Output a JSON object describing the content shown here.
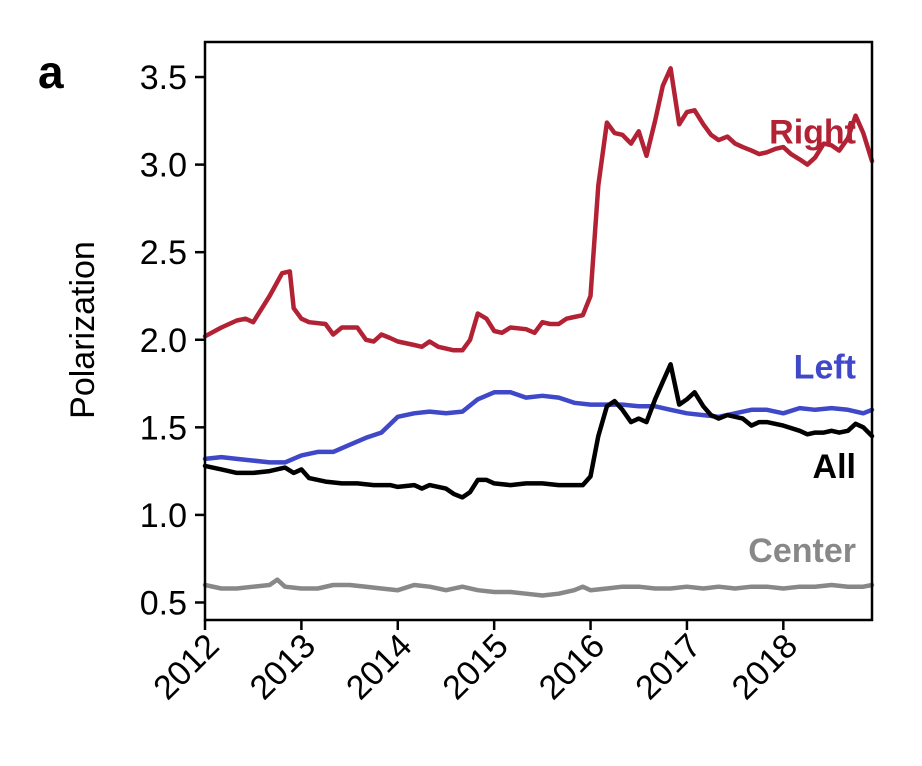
{
  "panel_label": "a",
  "chart_data": {
    "type": "line",
    "title": "",
    "xlabel": "",
    "ylabel": "Polarization",
    "xlim": [
      2012.0,
      2018.92
    ],
    "ylim": [
      0.4,
      3.7
    ],
    "yticks": [
      "0.5",
      "1.0",
      "1.5",
      "2.0",
      "2.5",
      "3.0",
      "3.5"
    ],
    "xticks": [
      "2012",
      "2013",
      "2014",
      "2015",
      "2016",
      "2017",
      "2018"
    ],
    "grid": false,
    "legend": "inline labels at right of each line",
    "series": [
      {
        "name": "Right",
        "color": "#b22234",
        "points": [
          [
            2012.0,
            2.02
          ],
          [
            2012.17,
            2.07
          ],
          [
            2012.33,
            2.11
          ],
          [
            2012.42,
            2.12
          ],
          [
            2012.5,
            2.1
          ],
          [
            2012.67,
            2.25
          ],
          [
            2012.75,
            2.33
          ],
          [
            2012.8,
            2.38
          ],
          [
            2012.88,
            2.39
          ],
          [
            2012.92,
            2.18
          ],
          [
            2013.0,
            2.12
          ],
          [
            2013.08,
            2.1
          ],
          [
            2013.25,
            2.09
          ],
          [
            2013.33,
            2.03
          ],
          [
            2013.42,
            2.07
          ],
          [
            2013.58,
            2.07
          ],
          [
            2013.67,
            2.0
          ],
          [
            2013.75,
            1.99
          ],
          [
            2013.83,
            2.03
          ],
          [
            2013.92,
            2.01
          ],
          [
            2014.0,
            1.99
          ],
          [
            2014.17,
            1.97
          ],
          [
            2014.25,
            1.96
          ],
          [
            2014.33,
            1.99
          ],
          [
            2014.42,
            1.96
          ],
          [
            2014.58,
            1.94
          ],
          [
            2014.67,
            1.94
          ],
          [
            2014.75,
            2.0
          ],
          [
            2014.83,
            2.15
          ],
          [
            2014.92,
            2.12
          ],
          [
            2015.0,
            2.05
          ],
          [
            2015.08,
            2.04
          ],
          [
            2015.17,
            2.07
          ],
          [
            2015.33,
            2.06
          ],
          [
            2015.42,
            2.04
          ],
          [
            2015.5,
            2.1
          ],
          [
            2015.58,
            2.09
          ],
          [
            2015.67,
            2.09
          ],
          [
            2015.75,
            2.12
          ],
          [
            2015.83,
            2.13
          ],
          [
            2015.92,
            2.14
          ],
          [
            2016.0,
            2.25
          ],
          [
            2016.08,
            2.88
          ],
          [
            2016.17,
            3.24
          ],
          [
            2016.25,
            3.18
          ],
          [
            2016.33,
            3.17
          ],
          [
            2016.42,
            3.12
          ],
          [
            2016.5,
            3.19
          ],
          [
            2016.58,
            3.05
          ],
          [
            2016.67,
            3.25
          ],
          [
            2016.75,
            3.45
          ],
          [
            2016.83,
            3.55
          ],
          [
            2016.92,
            3.23
          ],
          [
            2017.0,
            3.3
          ],
          [
            2017.08,
            3.31
          ],
          [
            2017.17,
            3.23
          ],
          [
            2017.25,
            3.17
          ],
          [
            2017.33,
            3.14
          ],
          [
            2017.42,
            3.16
          ],
          [
            2017.5,
            3.12
          ],
          [
            2017.58,
            3.1
          ],
          [
            2017.67,
            3.08
          ],
          [
            2017.75,
            3.06
          ],
          [
            2017.83,
            3.07
          ],
          [
            2017.92,
            3.09
          ],
          [
            2018.0,
            3.1
          ],
          [
            2018.08,
            3.06
          ],
          [
            2018.17,
            3.03
          ],
          [
            2018.25,
            3.0
          ],
          [
            2018.33,
            3.04
          ],
          [
            2018.42,
            3.12
          ],
          [
            2018.5,
            3.11
          ],
          [
            2018.58,
            3.08
          ],
          [
            2018.67,
            3.15
          ],
          [
            2018.75,
            3.28
          ],
          [
            2018.83,
            3.18
          ],
          [
            2018.92,
            3.02
          ]
        ]
      },
      {
        "name": "Left",
        "color": "#3f48c8",
        "points": [
          [
            2012.0,
            1.32
          ],
          [
            2012.17,
            1.33
          ],
          [
            2012.33,
            1.32
          ],
          [
            2012.5,
            1.31
          ],
          [
            2012.67,
            1.3
          ],
          [
            2012.83,
            1.3
          ],
          [
            2013.0,
            1.34
          ],
          [
            2013.17,
            1.36
          ],
          [
            2013.33,
            1.36
          ],
          [
            2013.5,
            1.4
          ],
          [
            2013.67,
            1.44
          ],
          [
            2013.83,
            1.47
          ],
          [
            2014.0,
            1.56
          ],
          [
            2014.17,
            1.58
          ],
          [
            2014.33,
            1.59
          ],
          [
            2014.5,
            1.58
          ],
          [
            2014.67,
            1.59
          ],
          [
            2014.83,
            1.66
          ],
          [
            2015.0,
            1.7
          ],
          [
            2015.17,
            1.7
          ],
          [
            2015.33,
            1.67
          ],
          [
            2015.5,
            1.68
          ],
          [
            2015.67,
            1.67
          ],
          [
            2015.83,
            1.64
          ],
          [
            2016.0,
            1.63
          ],
          [
            2016.17,
            1.63
          ],
          [
            2016.33,
            1.63
          ],
          [
            2016.5,
            1.62
          ],
          [
            2016.67,
            1.62
          ],
          [
            2016.83,
            1.6
          ],
          [
            2017.0,
            1.58
          ],
          [
            2017.17,
            1.57
          ],
          [
            2017.33,
            1.56
          ],
          [
            2017.5,
            1.58
          ],
          [
            2017.67,
            1.6
          ],
          [
            2017.83,
            1.6
          ],
          [
            2018.0,
            1.58
          ],
          [
            2018.17,
            1.61
          ],
          [
            2018.33,
            1.6
          ],
          [
            2018.5,
            1.61
          ],
          [
            2018.67,
            1.6
          ],
          [
            2018.83,
            1.58
          ],
          [
            2018.92,
            1.6
          ]
        ]
      },
      {
        "name": "All",
        "color": "#000000",
        "points": [
          [
            2012.0,
            1.28
          ],
          [
            2012.17,
            1.26
          ],
          [
            2012.33,
            1.24
          ],
          [
            2012.5,
            1.24
          ],
          [
            2012.67,
            1.25
          ],
          [
            2012.83,
            1.27
          ],
          [
            2012.92,
            1.24
          ],
          [
            2013.0,
            1.26
          ],
          [
            2013.08,
            1.21
          ],
          [
            2013.25,
            1.19
          ],
          [
            2013.42,
            1.18
          ],
          [
            2013.58,
            1.18
          ],
          [
            2013.75,
            1.17
          ],
          [
            2013.92,
            1.17
          ],
          [
            2014.0,
            1.16
          ],
          [
            2014.17,
            1.17
          ],
          [
            2014.25,
            1.15
          ],
          [
            2014.33,
            1.17
          ],
          [
            2014.5,
            1.15
          ],
          [
            2014.58,
            1.12
          ],
          [
            2014.67,
            1.1
          ],
          [
            2014.75,
            1.13
          ],
          [
            2014.83,
            1.2
          ],
          [
            2014.92,
            1.2
          ],
          [
            2015.0,
            1.18
          ],
          [
            2015.17,
            1.17
          ],
          [
            2015.33,
            1.18
          ],
          [
            2015.5,
            1.18
          ],
          [
            2015.67,
            1.17
          ],
          [
            2015.83,
            1.17
          ],
          [
            2015.92,
            1.17
          ],
          [
            2016.0,
            1.22
          ],
          [
            2016.08,
            1.45
          ],
          [
            2016.17,
            1.62
          ],
          [
            2016.25,
            1.65
          ],
          [
            2016.33,
            1.6
          ],
          [
            2016.42,
            1.53
          ],
          [
            2016.5,
            1.55
          ],
          [
            2016.58,
            1.53
          ],
          [
            2016.67,
            1.66
          ],
          [
            2016.75,
            1.76
          ],
          [
            2016.83,
            1.86
          ],
          [
            2016.92,
            1.63
          ],
          [
            2017.0,
            1.66
          ],
          [
            2017.08,
            1.7
          ],
          [
            2017.17,
            1.62
          ],
          [
            2017.25,
            1.57
          ],
          [
            2017.33,
            1.55
          ],
          [
            2017.42,
            1.57
          ],
          [
            2017.5,
            1.56
          ],
          [
            2017.58,
            1.55
          ],
          [
            2017.67,
            1.51
          ],
          [
            2017.75,
            1.53
          ],
          [
            2017.83,
            1.53
          ],
          [
            2018.0,
            1.51
          ],
          [
            2018.17,
            1.48
          ],
          [
            2018.25,
            1.46
          ],
          [
            2018.33,
            1.47
          ],
          [
            2018.42,
            1.47
          ],
          [
            2018.5,
            1.48
          ],
          [
            2018.58,
            1.47
          ],
          [
            2018.67,
            1.48
          ],
          [
            2018.75,
            1.52
          ],
          [
            2018.83,
            1.5
          ],
          [
            2018.92,
            1.45
          ]
        ]
      },
      {
        "name": "Center",
        "color": "#888888",
        "points": [
          [
            2012.0,
            0.6
          ],
          [
            2012.17,
            0.58
          ],
          [
            2012.33,
            0.58
          ],
          [
            2012.5,
            0.59
          ],
          [
            2012.67,
            0.6
          ],
          [
            2012.75,
            0.63
          ],
          [
            2012.83,
            0.59
          ],
          [
            2013.0,
            0.58
          ],
          [
            2013.17,
            0.58
          ],
          [
            2013.33,
            0.6
          ],
          [
            2013.5,
            0.6
          ],
          [
            2013.67,
            0.59
          ],
          [
            2013.83,
            0.58
          ],
          [
            2014.0,
            0.57
          ],
          [
            2014.17,
            0.6
          ],
          [
            2014.33,
            0.59
          ],
          [
            2014.5,
            0.57
          ],
          [
            2014.67,
            0.59
          ],
          [
            2014.83,
            0.57
          ],
          [
            2015.0,
            0.56
          ],
          [
            2015.17,
            0.56
          ],
          [
            2015.33,
            0.55
          ],
          [
            2015.5,
            0.54
          ],
          [
            2015.67,
            0.55
          ],
          [
            2015.83,
            0.57
          ],
          [
            2015.92,
            0.59
          ],
          [
            2016.0,
            0.57
          ],
          [
            2016.17,
            0.58
          ],
          [
            2016.33,
            0.59
          ],
          [
            2016.5,
            0.59
          ],
          [
            2016.67,
            0.58
          ],
          [
            2016.83,
            0.58
          ],
          [
            2017.0,
            0.59
          ],
          [
            2017.17,
            0.58
          ],
          [
            2017.33,
            0.59
          ],
          [
            2017.5,
            0.58
          ],
          [
            2017.67,
            0.59
          ],
          [
            2017.83,
            0.59
          ],
          [
            2018.0,
            0.58
          ],
          [
            2018.17,
            0.59
          ],
          [
            2018.33,
            0.59
          ],
          [
            2018.5,
            0.6
          ],
          [
            2018.67,
            0.59
          ],
          [
            2018.83,
            0.59
          ],
          [
            2018.92,
            0.6
          ]
        ]
      }
    ]
  }
}
